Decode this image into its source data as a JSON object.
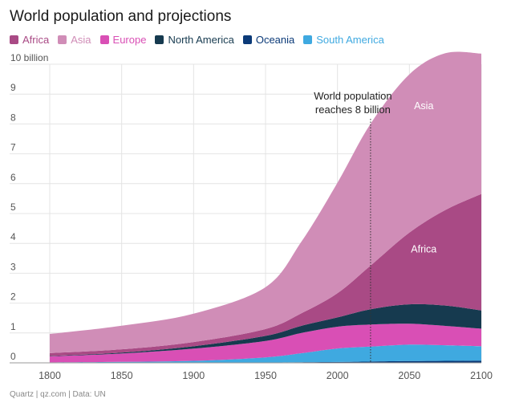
{
  "chart_data": {
    "type": "area",
    "title": "World population and projections",
    "xlabel": "",
    "ylabel": "",
    "x_ticks": [
      "1800",
      "1850",
      "1900",
      "1950",
      "2000",
      "2050",
      "2100"
    ],
    "y_ticks": [
      "10 billion",
      "9",
      "8",
      "7",
      "6",
      "5",
      "4",
      "3",
      "2",
      "1",
      "0"
    ],
    "xlim": [
      1800,
      2100
    ],
    "ylim": [
      0,
      10
    ],
    "stacked": true,
    "x": [
      1800,
      1850,
      1900,
      1950,
      1975,
      2000,
      2023,
      2050,
      2075,
      2100
    ],
    "series": [
      {
        "name": "Oceania",
        "color": "#0b3a78",
        "values": [
          0.002,
          0.002,
          0.006,
          0.013,
          0.021,
          0.031,
          0.045,
          0.06,
          0.068,
          0.075
        ]
      },
      {
        "name": "South America",
        "color": "#3fa9e0",
        "values": [
          0.015,
          0.03,
          0.06,
          0.17,
          0.3,
          0.45,
          0.5,
          0.55,
          0.52,
          0.48
        ]
      },
      {
        "name": "Europe",
        "color": "#d94fb5",
        "values": [
          0.2,
          0.28,
          0.41,
          0.55,
          0.68,
          0.73,
          0.74,
          0.7,
          0.65,
          0.59
        ]
      },
      {
        "name": "North America",
        "color": "#163a4f",
        "values": [
          0.01,
          0.03,
          0.08,
          0.17,
          0.24,
          0.31,
          0.51,
          0.65,
          0.68,
          0.61
        ]
      },
      {
        "name": "Africa",
        "color": "#a94a85",
        "values": [
          0.1,
          0.11,
          0.14,
          0.23,
          0.42,
          0.81,
          1.46,
          2.4,
          3.2,
          3.9
        ]
      },
      {
        "name": "Asia",
        "color": "#d08db7",
        "values": [
          0.64,
          0.79,
          0.95,
          1.4,
          2.4,
          3.7,
          4.75,
          5.3,
          5.25,
          4.7
        ]
      }
    ],
    "legend_order": [
      "Africa",
      "Asia",
      "Europe",
      "North America",
      "Oceania",
      "South America"
    ],
    "annotations": [
      {
        "text": "World population\nreaches 8 billion",
        "x": 2023
      },
      {
        "text": "Asia",
        "x": 2060,
        "y": 8.5
      },
      {
        "text": "Africa",
        "x": 2060,
        "y": 3.7
      }
    ],
    "grid": true,
    "legend": "top-left"
  },
  "source": "Quartz | qz.com | Data: UN"
}
